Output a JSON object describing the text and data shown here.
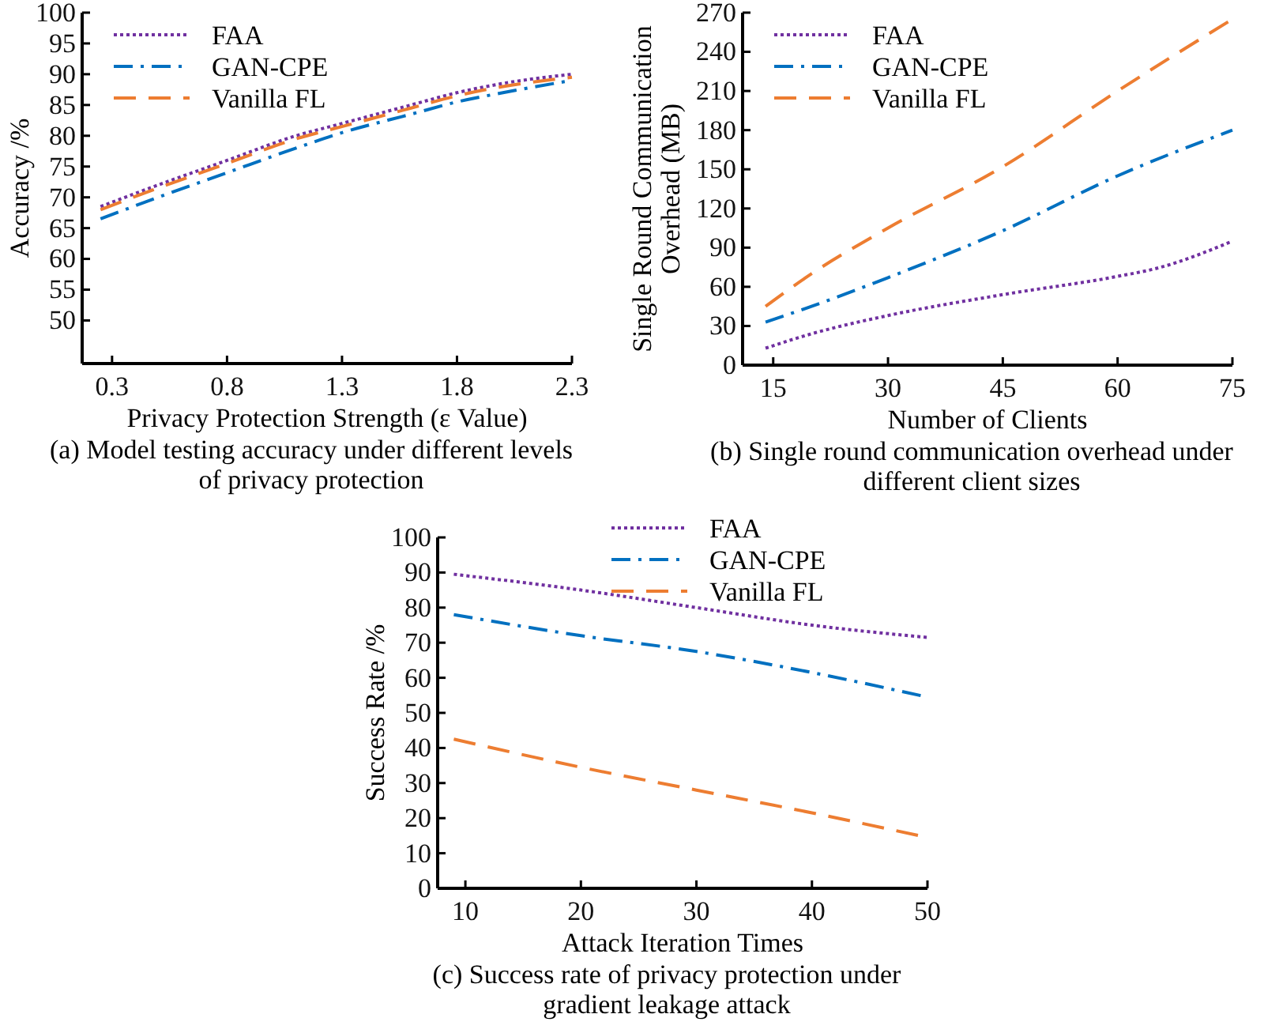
{
  "chart_data": [
    {
      "type": "line",
      "xlabel": "Privacy Protection Strength (ε Value)",
      "ylabel": "Accuracy /%",
      "annotations": [
        "(a) Model testing accuracy under different levels of privacy protection"
      ],
      "xlim": [
        0.17,
        2.3
      ],
      "xticks": [
        0.3,
        0.8,
        1.3,
        1.8,
        2.3
      ],
      "ylim": [
        43,
        100
      ],
      "yticks": [
        50,
        55,
        60,
        65,
        70,
        75,
        80,
        85,
        90,
        95,
        100
      ],
      "legend": "top left",
      "grid": false,
      "x": [
        0.25,
        0.5,
        0.8,
        1.1,
        1.3,
        1.6,
        1.8,
        2.0,
        2.3
      ],
      "series": [
        {
          "name": "FAA",
          "color": "#7030a0",
          "line_style": "dotted",
          "values": [
            68.5,
            72,
            76,
            80,
            82,
            85,
            87,
            88.5,
            90
          ]
        },
        {
          "name": "GAN-CPE",
          "color": "#0070c0",
          "line_style": "dashdot",
          "values": [
            66.5,
            70,
            74,
            78,
            80.5,
            83.5,
            85.5,
            87,
            89
          ]
        },
        {
          "name": "Vanilla FL",
          "color": "#ed7d31",
          "line_style": "dashed",
          "values": [
            68,
            71.5,
            75.5,
            79.5,
            81.5,
            84.5,
            86.5,
            88,
            89.5
          ]
        }
      ]
    },
    {
      "type": "line",
      "xlabel": "Number of Clients",
      "ylabel": "Single Round Communication Overhead (MB)",
      "annotations": [
        "(b) Single round communication overhead under different client sizes"
      ],
      "xlim": [
        11,
        75
      ],
      "xticks": [
        15,
        30,
        45,
        60,
        75
      ],
      "ylim": [
        0,
        270
      ],
      "yticks": [
        0,
        30,
        60,
        90,
        120,
        150,
        180,
        210,
        240,
        270
      ],
      "legend": "top left",
      "grid": false,
      "series": [
        {
          "name": "FAA",
          "color": "#7030a0",
          "line_style": "dotted",
          "x": [
            14,
            20,
            30,
            45,
            60,
            65,
            75
          ],
          "values": [
            13,
            24,
            38,
            54,
            68,
            74,
            95
          ]
        },
        {
          "name": "GAN-CPE",
          "color": "#0070c0",
          "line_style": "dashdot",
          "x": [
            14,
            20,
            30,
            45,
            60,
            75
          ],
          "values": [
            33,
            45,
            67,
            103,
            145,
            180
          ]
        },
        {
          "name": "Vanilla FL",
          "color": "#ed7d31",
          "line_style": "dashed",
          "x": [
            14,
            20,
            30,
            45,
            60,
            75
          ],
          "values": [
            45,
            70,
            105,
            152,
            210,
            265
          ]
        }
      ]
    },
    {
      "type": "line",
      "xlabel": "Attack Iteration Times",
      "ylabel": "Success Rate /%",
      "annotations": [
        "(c) Success rate of privacy protection under gradient leakage attack"
      ],
      "xlim": [
        7.6,
        50
      ],
      "xticks": [
        10,
        20,
        30,
        40,
        50
      ],
      "ylim": [
        0,
        100
      ],
      "yticks": [
        0,
        10,
        20,
        30,
        40,
        50,
        60,
        70,
        80,
        90,
        100
      ],
      "legend": "top",
      "grid": false,
      "x": [
        9,
        20,
        30,
        40,
        50
      ],
      "series": [
        {
          "name": "FAA",
          "color": "#7030a0",
          "line_style": "dotted",
          "values": [
            89.5,
            85,
            80,
            75,
            71.5
          ]
        },
        {
          "name": "GAN-CPE",
          "color": "#0070c0",
          "line_style": "dashdot",
          "values": [
            78,
            72,
            67.5,
            61.5,
            54.5
          ]
        },
        {
          "name": "Vanilla FL",
          "color": "#ed7d31",
          "line_style": "dashed",
          "values": [
            42.5,
            34.5,
            28,
            21.5,
            14.5
          ]
        }
      ]
    }
  ]
}
